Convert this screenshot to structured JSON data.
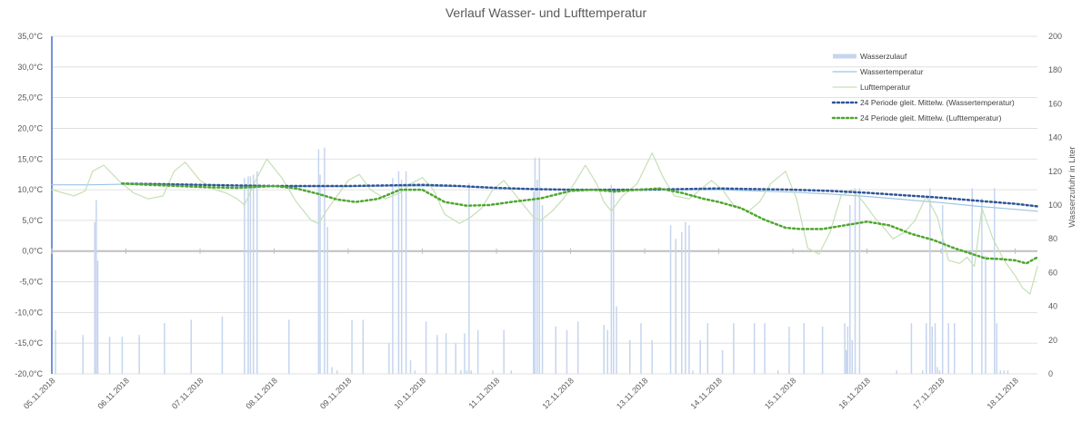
{
  "chart_data": {
    "type": "line",
    "title": "Verlauf Wasser- und Lufttemperatur",
    "ylabel": "",
    "y2label": "Wasserzufuhr in Liter",
    "ylim": [
      -20,
      35
    ],
    "y2lim": [
      0,
      200
    ],
    "xlim": [
      0,
      13.3
    ],
    "y_ticks": [
      "35,0°C",
      "30,0°C",
      "25,0°C",
      "20,0°C",
      "15,0°C",
      "10,0°C",
      "5,0°C",
      "0,0°C",
      "-5,0°C",
      "-10,0°C",
      "-15,0°C",
      "-20,0°C"
    ],
    "y_tick_values": [
      35,
      30,
      25,
      20,
      15,
      10,
      5,
      0,
      -5,
      -10,
      -15,
      -20
    ],
    "y2_ticks": [
      "200",
      "180",
      "160",
      "140",
      "120",
      "100",
      "80",
      "60",
      "40",
      "20",
      "0"
    ],
    "y2_tick_values": [
      200,
      180,
      160,
      140,
      120,
      100,
      80,
      60,
      40,
      20,
      0
    ],
    "categories": [
      "05.11.2018",
      "06.11.2018",
      "07.11.2018",
      "08.11.2018",
      "09.11.2018",
      "10.11.2018",
      "11.11.2018",
      "12.11.2018",
      "13.11.2018",
      "14.11.2018",
      "15.11.2018",
      "16.11.2018",
      "17.11.2018",
      "18.11.2018"
    ],
    "grid": true,
    "legend_position": "right",
    "colors": {
      "wasserzulauf": "#c5d5ee",
      "wassertemperatur": "#9dc3e6",
      "lufttemperatur": "#c5e0b4",
      "ma_wasser": "#2f5597",
      "ma_luft": "#4ea72e",
      "grid": "#d9d9d9",
      "zero": "#bfbfbf"
    },
    "series": [
      {
        "name": "Wasserzulauf",
        "kind": "bar",
        "axis": "y2",
        "x": [
          0.0,
          0.05,
          0.42,
          0.58,
          0.6,
          0.62,
          0.78,
          0.95,
          1.18,
          1.52,
          1.88,
          2.3,
          2.6,
          2.65,
          2.68,
          2.72,
          2.77,
          3.2,
          3.6,
          3.62,
          3.68,
          3.72,
          3.78,
          3.85,
          4.05,
          4.2,
          4.55,
          4.6,
          4.68,
          4.72,
          4.78,
          4.84,
          4.9,
          5.05,
          5.2,
          5.32,
          5.45,
          5.52,
          5.57,
          5.6,
          5.63,
          5.66,
          5.75,
          5.95,
          6.1,
          6.2,
          6.5,
          6.52,
          6.55,
          6.58,
          6.62,
          6.8,
          6.95,
          7.1,
          7.45,
          7.5,
          7.55,
          7.58,
          7.62,
          7.8,
          7.95,
          8.1,
          8.35,
          8.42,
          8.5,
          8.55,
          8.6,
          8.65,
          8.75,
          8.85,
          9.05,
          9.2,
          9.48,
          9.62,
          9.8,
          9.95,
          10.15,
          10.4,
          10.7,
          10.72,
          10.74,
          10.77,
          10.8,
          10.84,
          10.9,
          11.4,
          11.6,
          11.75,
          11.8,
          11.85,
          11.88,
          11.92,
          11.95,
          11.98,
          12.02,
          12.1,
          12.18,
          12.42,
          12.55,
          12.6,
          12.72,
          12.75,
          12.8,
          12.85,
          12.9
        ],
        "values": [
          200,
          26,
          23,
          90,
          103,
          67,
          22,
          22,
          23,
          30,
          32,
          34,
          116,
          117,
          117,
          118,
          120,
          32,
          133,
          118,
          134,
          87,
          4,
          2,
          32,
          32,
          18,
          116,
          120,
          115,
          120,
          8,
          2,
          31,
          23,
          24,
          18,
          2,
          24,
          2,
          113,
          2,
          26,
          2,
          26,
          2,
          108,
          128,
          115,
          128,
          100,
          28,
          26,
          31,
          29,
          26,
          112,
          110,
          40,
          20,
          30,
          20,
          88,
          80,
          84,
          90,
          88,
          2,
          20,
          30,
          14,
          30,
          30,
          30,
          2,
          28,
          30,
          28,
          30,
          14,
          28,
          100,
          20,
          110,
          110,
          2,
          30,
          2,
          30,
          110,
          28,
          30,
          4,
          2,
          100,
          30,
          30,
          110,
          104,
          70,
          110,
          30,
          2,
          2,
          2
        ]
      },
      {
        "name": "Wassertemperatur",
        "kind": "line",
        "axis": "y",
        "x": [
          0,
          0.5,
          1,
          1.5,
          2,
          2.5,
          3,
          3.5,
          4,
          4.5,
          5,
          5.5,
          6,
          6.5,
          7,
          7.5,
          8,
          8.5,
          9,
          9.5,
          10,
          10.5,
          11,
          11.5,
          12,
          12.5,
          13,
          13.3
        ],
        "values": [
          10.8,
          10.8,
          10.9,
          10.9,
          10.8,
          10.6,
          10.5,
          10.5,
          10.5,
          10.6,
          10.6,
          10.5,
          10.2,
          10.1,
          10.0,
          10.0,
          10.0,
          10.0,
          10.0,
          9.8,
          9.6,
          9.3,
          8.9,
          8.4,
          7.9,
          7.3,
          6.8,
          6.5
        ]
      },
      {
        "name": "Lufttemperatur",
        "kind": "line",
        "axis": "y",
        "x": [
          0,
          0.15,
          0.3,
          0.45,
          0.55,
          0.7,
          0.9,
          1.1,
          1.3,
          1.5,
          1.65,
          1.8,
          2.0,
          2.2,
          2.35,
          2.5,
          2.6,
          2.75,
          2.9,
          3.1,
          3.3,
          3.5,
          3.6,
          3.7,
          3.85,
          4.0,
          4.15,
          4.3,
          4.5,
          4.7,
          4.85,
          5.0,
          5.15,
          5.3,
          5.5,
          5.65,
          5.8,
          5.95,
          6.1,
          6.3,
          6.5,
          6.6,
          6.75,
          6.9,
          7.05,
          7.2,
          7.35,
          7.45,
          7.55,
          7.7,
          7.9,
          8.1,
          8.25,
          8.4,
          8.6,
          8.75,
          8.9,
          9.05,
          9.2,
          9.4,
          9.55,
          9.7,
          9.9,
          10.05,
          10.2,
          10.35,
          10.5,
          10.65,
          10.8,
          10.95,
          11.1,
          11.25,
          11.35,
          11.5,
          11.65,
          11.8,
          11.95,
          12.1,
          12.25,
          12.35,
          12.45,
          12.55,
          12.7,
          12.85,
          13.0,
          13.1,
          13.2,
          13.3
        ],
        "values": [
          10.0,
          9.5,
          9.0,
          9.8,
          13.0,
          14.0,
          11.5,
          9.5,
          8.5,
          9.0,
          13.0,
          14.5,
          11.5,
          10.0,
          9.5,
          8.5,
          7.5,
          11.5,
          15.0,
          12.0,
          8.0,
          5.0,
          4.5,
          6.5,
          9.0,
          11.5,
          12.5,
          10.0,
          8.5,
          9.5,
          11.0,
          12.0,
          10.0,
          6.0,
          4.5,
          5.5,
          7.0,
          10.0,
          11.5,
          8.5,
          5.5,
          5.0,
          6.5,
          8.5,
          11.0,
          14.0,
          11.0,
          8.0,
          6.5,
          9.0,
          11.0,
          16.0,
          12.0,
          9.0,
          8.5,
          10.0,
          11.5,
          10.0,
          7.5,
          6.5,
          8.0,
          11.0,
          13.0,
          8.5,
          0.5,
          -0.5,
          3.0,
          9.0,
          10.0,
          8.0,
          5.5,
          3.5,
          2.0,
          3.0,
          5.0,
          9.0,
          5.5,
          -1.5,
          -2.0,
          -1.0,
          -2.5,
          7.0,
          2.0,
          -1.5,
          -4.0,
          -6.0,
          -7.0,
          -2.5
        ]
      },
      {
        "name": "24 Periode gleit. Mittelw. (Wassertemperatur)",
        "kind": "moving_average",
        "axis": "y",
        "x": [
          0.95,
          1.5,
          2,
          2.5,
          3,
          3.5,
          4,
          4.5,
          5,
          5.5,
          6,
          6.5,
          7,
          7.5,
          8,
          8.5,
          9,
          9.5,
          10,
          10.5,
          11,
          11.5,
          12,
          12.5,
          13,
          13.3
        ],
        "values": [
          11.0,
          10.9,
          10.8,
          10.7,
          10.6,
          10.6,
          10.6,
          10.7,
          10.8,
          10.6,
          10.3,
          10.1,
          10.0,
          10.0,
          10.0,
          10.1,
          10.2,
          10.1,
          10.0,
          9.8,
          9.5,
          9.1,
          8.7,
          8.2,
          7.7,
          7.3
        ]
      },
      {
        "name": "24 Periode gleit. Mittelw. (Lufttemperatur)",
        "kind": "moving_average",
        "axis": "y",
        "x": [
          0.95,
          1.3,
          1.7,
          2.1,
          2.5,
          3.0,
          3.3,
          3.6,
          3.85,
          4.1,
          4.4,
          4.7,
          5.0,
          5.3,
          5.6,
          5.9,
          6.2,
          6.6,
          7.0,
          7.3,
          7.6,
          7.9,
          8.2,
          8.5,
          8.8,
          9.0,
          9.3,
          9.6,
          9.9,
          10.1,
          10.4,
          10.7,
          11.0,
          11.3,
          11.6,
          11.9,
          12.15,
          12.4,
          12.6,
          12.8,
          13.0,
          13.15,
          13.3
        ],
        "values": [
          11.0,
          10.8,
          10.6,
          10.4,
          10.3,
          10.6,
          10.2,
          9.3,
          8.4,
          8.0,
          8.5,
          10.0,
          10.0,
          8.0,
          7.4,
          7.5,
          8.0,
          8.6,
          9.8,
          10.0,
          9.7,
          10.0,
          10.2,
          9.5,
          8.5,
          8.0,
          7.0,
          5.2,
          3.8,
          3.6,
          3.6,
          4.2,
          4.8,
          4.2,
          2.8,
          1.8,
          0.6,
          -0.4,
          -1.2,
          -1.3,
          -1.5,
          -2.0,
          -1.0
        ]
      }
    ]
  }
}
